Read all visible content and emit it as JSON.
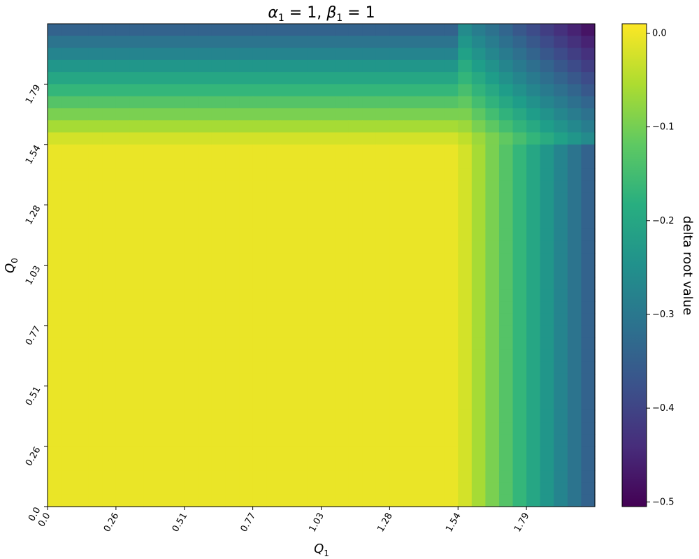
{
  "chart_data": {
    "type": "heatmap",
    "title": "α1 = 1, β1 = 1",
    "title_parts": {
      "a": "α",
      "a_sub": "1",
      "b": "β",
      "b_sub": "1",
      "eq": " = 1, ",
      "eq2": " = 1"
    },
    "xlabel": "Q",
    "xlabel_sub": "1",
    "ylabel": "Q",
    "ylabel_sub": "0",
    "x_ticks": [
      "0.0",
      "0.26",
      "0.51",
      "0.77",
      "1.03",
      "1.28",
      "1.54",
      "1.79"
    ],
    "y_ticks": [
      "0.0",
      "0.26",
      "0.51",
      "0.77",
      "1.03",
      "1.28",
      "1.54",
      "1.79"
    ],
    "grid_shape": [
      40,
      40
    ],
    "xlim": [
      0.0,
      2.0
    ],
    "ylim": [
      0.0,
      2.0
    ],
    "colorbar": {
      "label": "delta root value",
      "ticks": [
        "0.0",
        "−0.1",
        "−0.2",
        "−0.3",
        "−0.4",
        "−0.5"
      ],
      "tick_values": [
        0.0,
        -0.1,
        -0.2,
        -0.3,
        -0.4,
        -0.5
      ],
      "range": [
        -0.505,
        0.01
      ],
      "colormap": "viridis"
    },
    "plateau_value": -0.005,
    "threshold": 1.5,
    "max_drop": -0.5,
    "grid": false
  }
}
